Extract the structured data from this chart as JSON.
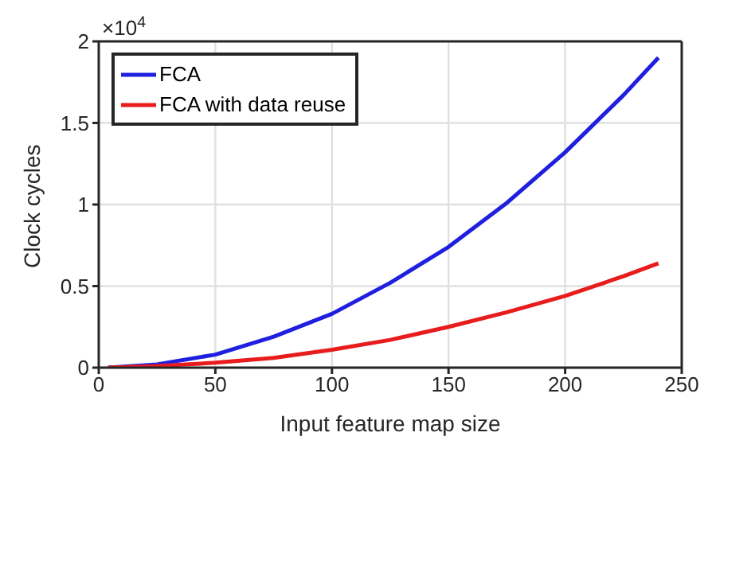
{
  "chart_data": {
    "type": "line",
    "xlabel": "Input feature map size",
    "ylabel": "Clock cycles",
    "annotations": [
      "×10$^{4}$"
    ],
    "x": [
      4,
      25,
      50,
      75,
      100,
      125,
      150,
      175,
      200,
      225,
      240
    ],
    "series": [
      {
        "name": "FCA",
        "color": "#1f1fe0",
        "values": [
          0,
          0.02,
          0.08,
          0.19,
          0.33,
          0.52,
          0.74,
          1.01,
          1.32,
          1.67,
          1.9
        ]
      },
      {
        "name": "FCA with data reuse",
        "color": "#e81c1c",
        "values": [
          0,
          0.01,
          0.03,
          0.06,
          0.11,
          0.17,
          0.25,
          0.34,
          0.44,
          0.56,
          0.64
        ]
      }
    ],
    "xlim": [
      0,
      250
    ],
    "xticks": [
      0,
      50,
      100,
      150,
      200,
      250
    ],
    "ylim": [
      0,
      2
    ],
    "yticks": [
      0,
      0.5,
      1,
      1.5,
      2
    ],
    "grid": true,
    "legend": "top left",
    "marker": "none",
    "line_style": "solid"
  }
}
